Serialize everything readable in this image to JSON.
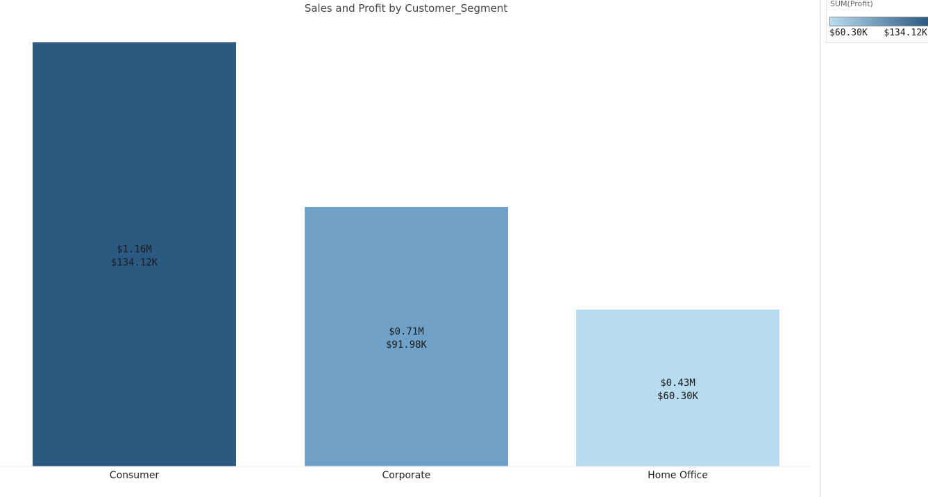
{
  "chart_data": {
    "type": "bar",
    "title": "Sales and Profit by Customer_Segment",
    "categories": [
      "Consumer",
      "Corporate",
      "Home Office"
    ],
    "values": [
      1.16,
      0.71,
      0.43
    ],
    "value_unit": "$M (Sales)",
    "color_values": [
      134.12,
      91.98,
      60.3
    ],
    "labels_sales": [
      "$1.16M",
      "$0.71M",
      "$0.43M"
    ],
    "labels_profit": [
      "$134.12K",
      "$91.98K",
      "$60.30K"
    ],
    "ylim": [
      0,
      1.16
    ],
    "grid": false,
    "colors": [
      "#2c5982",
      "#70a2c9",
      "#b8dcef"
    ],
    "legend": {
      "title": "SUM(Profit)",
      "min_label": "$60.30K",
      "max_label": "$134.12K",
      "min_color": "#b8dcef",
      "max_color": "#2c5982",
      "placement": "top-right"
    }
  }
}
